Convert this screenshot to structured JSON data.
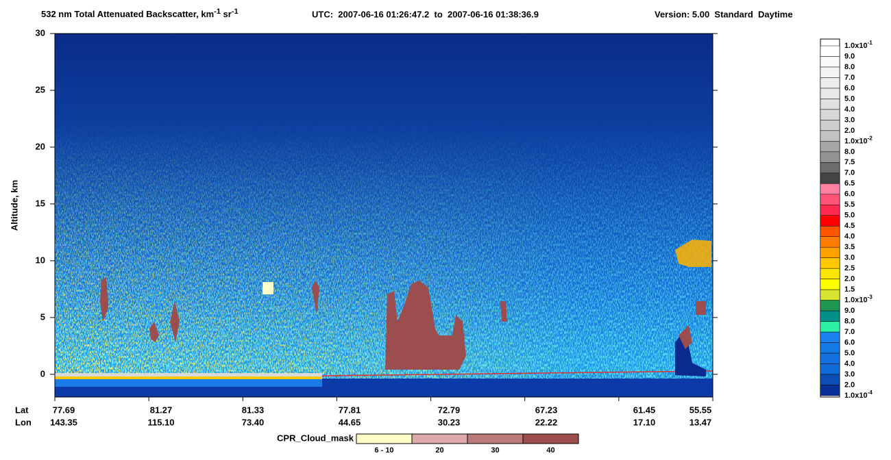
{
  "chart_data": {
    "type": "curtain",
    "title": [
      "532 nm Total Attenuated Backscatter, km",
      "-1",
      " sr",
      "-1"
    ],
    "subtitle": "UTC:  2007-06-16 01:26:47.2  to  2007-06-16 01:38:36.9",
    "version": "Version: 5.00  Standard  Daytime",
    "y_label": "Altitude, km",
    "ylim": [
      -2,
      30
    ],
    "yticks": [
      0,
      5,
      10,
      15,
      20,
      25,
      30
    ],
    "x_rows": [
      "Lat",
      "Lon"
    ],
    "lat": [
      "77.69",
      "81.27",
      "81.33",
      "77.81",
      "72.79",
      "67.23",
      "61.45",
      "55.55"
    ],
    "lon": [
      "143.35",
      "115.10",
      "73.40",
      "44.65",
      "30.23",
      "22.22",
      "17.10",
      "13.47"
    ],
    "colorbar": {
      "labels": [
        {
          "text": "1.0x10",
          "exp": "-1"
        },
        "9.0",
        "8.0",
        "7.0",
        "6.0",
        "5.0",
        "4.0",
        "3.0",
        "2.0",
        {
          "text": "1.0x10",
          "exp": "-2"
        },
        "8.0",
        "7.5",
        "7.0",
        "6.5",
        "6.0",
        "5.5",
        "5.0",
        "4.5",
        "4.0",
        "3.5",
        "3.0",
        "2.5",
        "2.0",
        "1.5",
        {
          "text": "1.0x10",
          "exp": "-3"
        },
        "9.0",
        "8.0",
        "7.0",
        "6.0",
        "5.0",
        "4.0",
        "3.0",
        "2.0",
        {
          "text": "1.0x10",
          "exp": "-4"
        }
      ],
      "colors": [
        "#ffffff",
        "#fafafa",
        "#f4f4f4",
        "#eeeeee",
        "#e8e8e8",
        "#e0e0e0",
        "#d8d8d8",
        "#cecece",
        "#c2c2c2",
        "#a6a6a6",
        "#929292",
        "#6c6c6c",
        "#444444",
        "#ff82a4",
        "#ff5478",
        "#ff2a50",
        "#ff0000",
        "#ff5500",
        "#ff7d00",
        "#ffa200",
        "#ffc800",
        "#ffe600",
        "#ffff00",
        "#d7e632",
        "#1e9650",
        "#00908a",
        "#2cf0a4",
        "#1a82f0",
        "#167ae6",
        "#1472e0",
        "#106ad8",
        "#0c4eb4",
        "#082e98"
      ]
    },
    "cpr": {
      "title": "CPR_Cloud_mask",
      "labels": [
        "6 - 10",
        "20",
        "30",
        "40"
      ],
      "colors": [
        "#ffffc8",
        "#dcaaaa",
        "#bc7a7a",
        "#9c4e4e"
      ]
    }
  }
}
